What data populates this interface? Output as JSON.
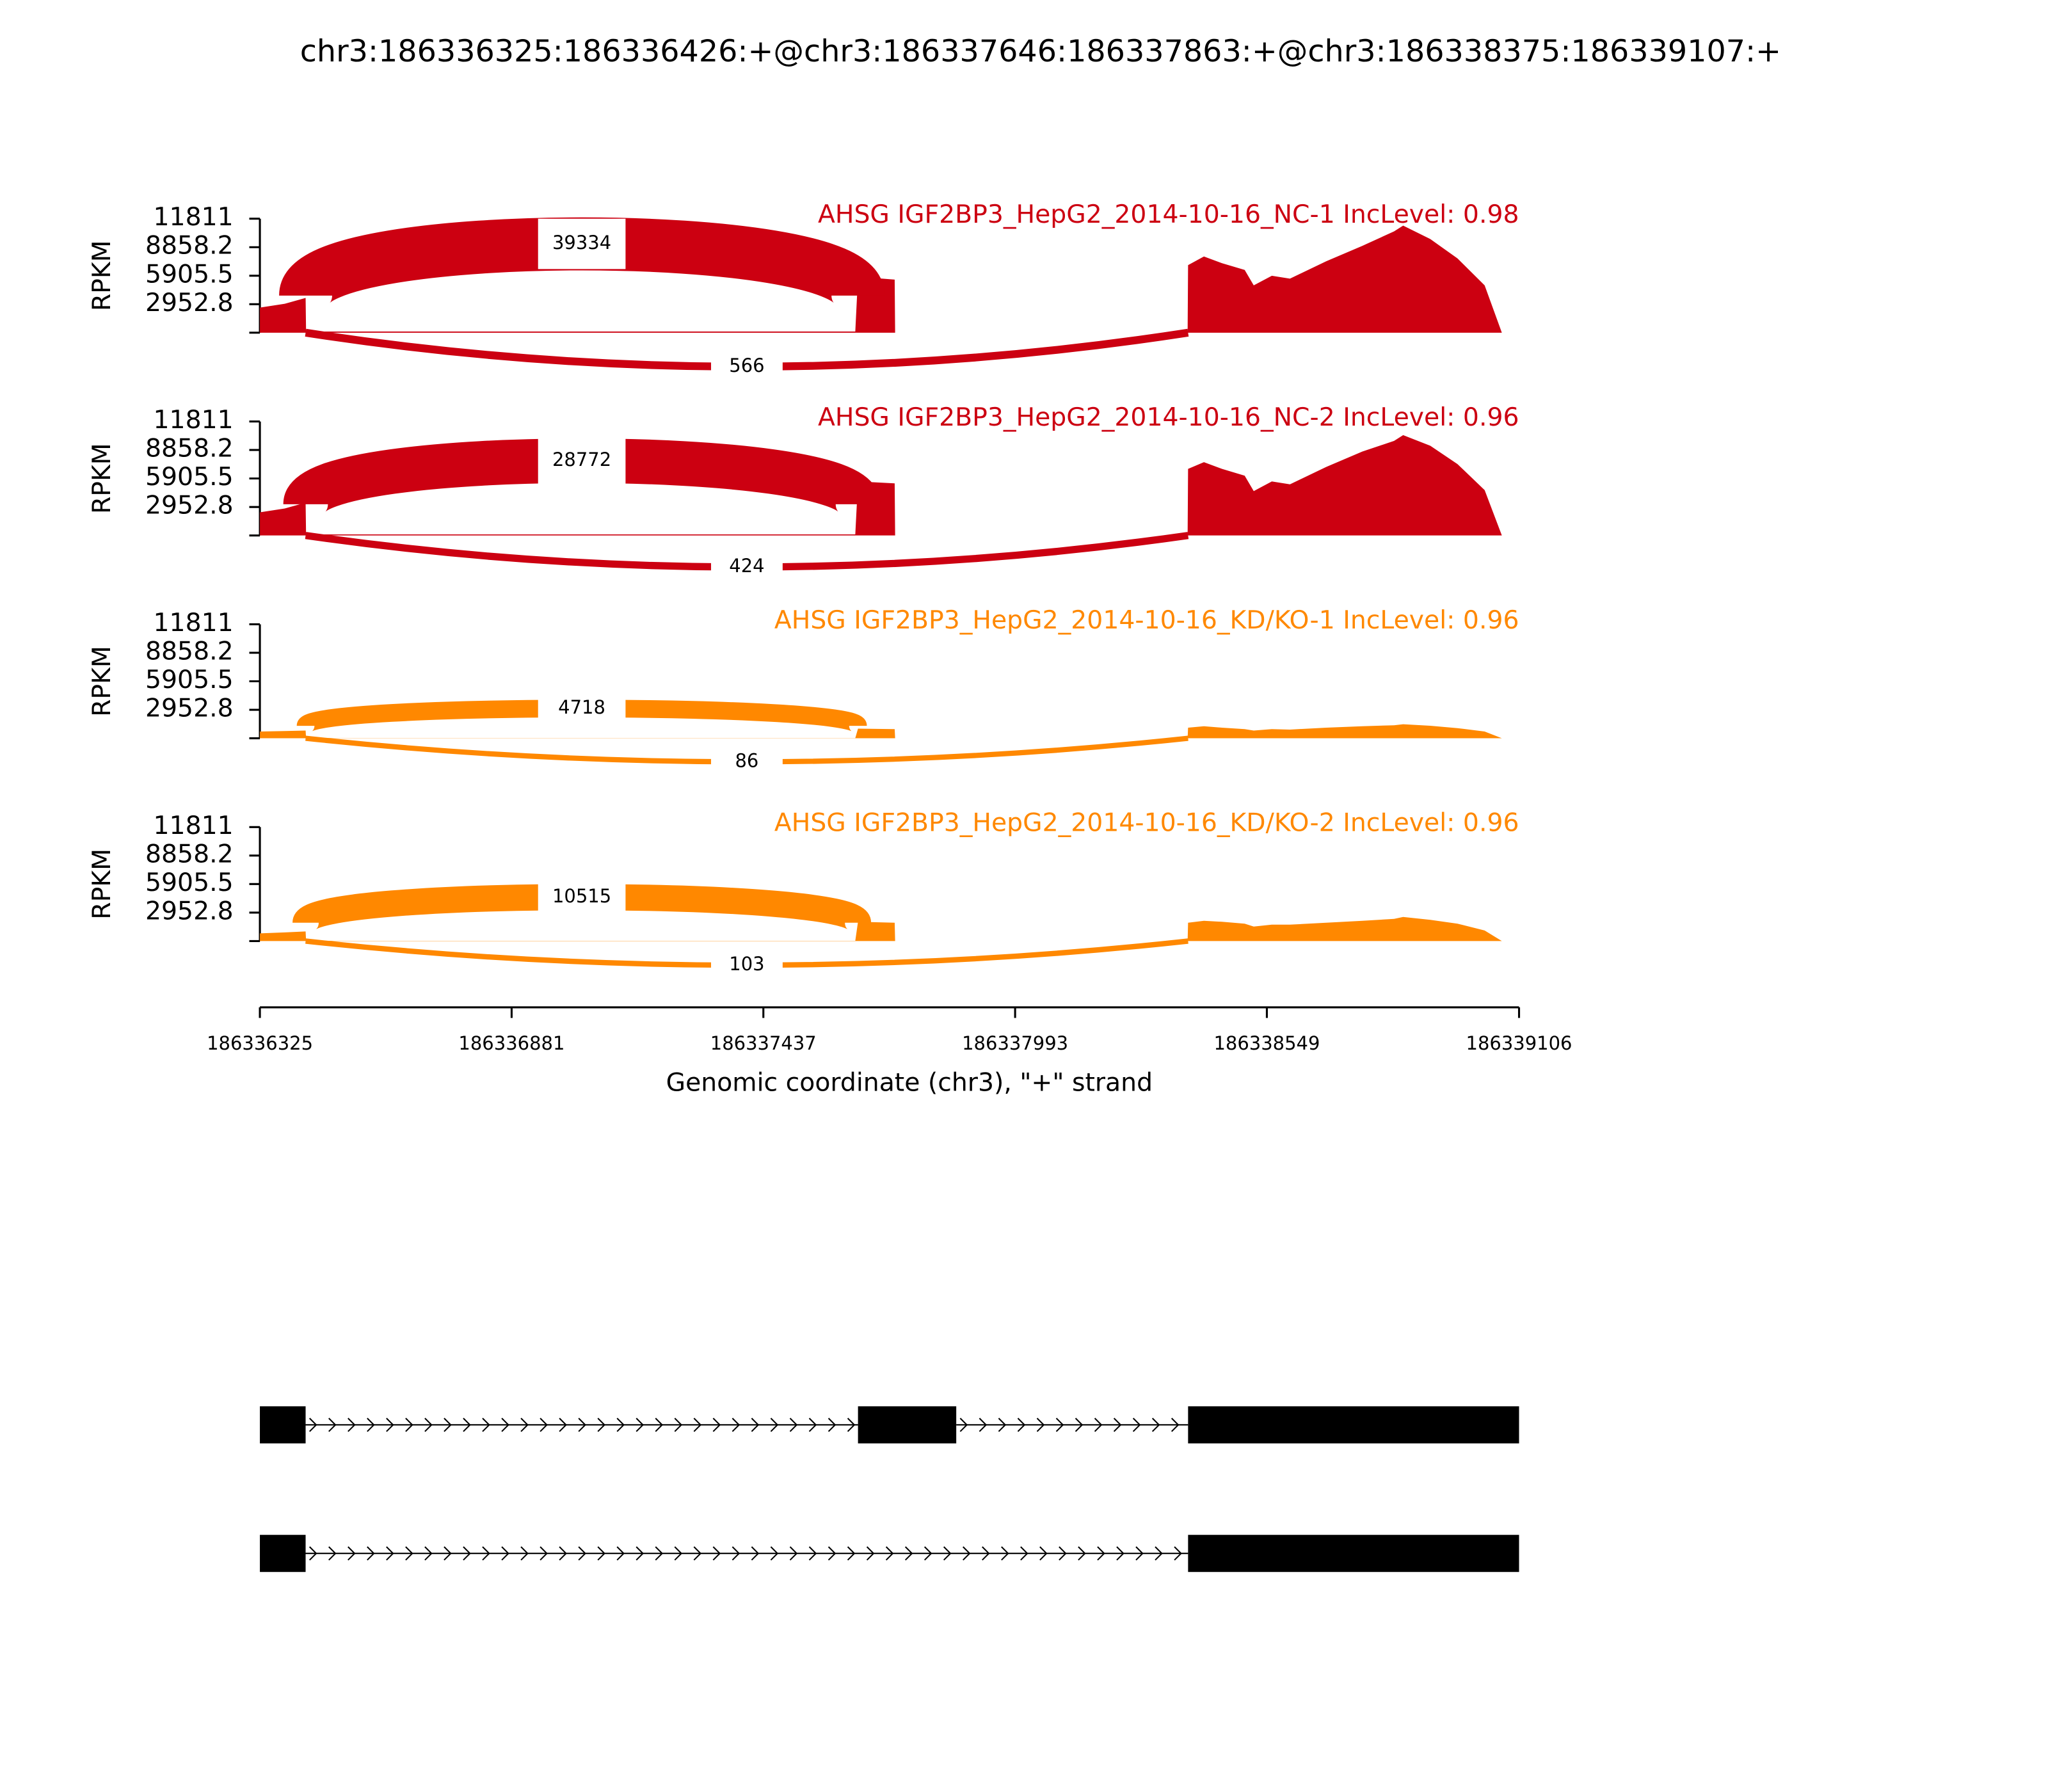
{
  "chart_data": {
    "type": "sashimi",
    "title": "chr3:186336325:186336426:+@chr3:186337646:186337863:+@chr3:186338375:186339107:+",
    "ylabel": "RPKM",
    "ylim": [
      0,
      11811
    ],
    "yticks": [
      2952.8,
      5905.5,
      8858.2,
      11811
    ],
    "xlim": [
      186336325,
      186339106
    ],
    "xticks": [
      186336325,
      186336881,
      186337437,
      186337993,
      186338549,
      186339106
    ],
    "xlabel": "Genomic coordinate (chr3), \"+\" strand",
    "panels": [
      {
        "name": "AHSG IGF2BP3_HepG2_2014-10-16_NC-1 IncLevel: 0.98",
        "color": "#cc0011",
        "coverage": {
          "x": [
            186336325,
            186336380,
            186336426,
            186336427,
            186337640,
            186337646,
            186337727,
            186337728,
            186338374,
            186338375,
            186338410,
            186338450,
            186338500,
            186338520,
            186338560,
            186338600,
            186338680,
            186338760,
            186338830,
            186338850,
            186338910,
            186338970,
            186339030,
            186339068
          ],
          "values": [
            2600,
            3000,
            3600,
            120,
            120,
            5800,
            5500,
            0,
            0,
            7000,
            7900,
            7200,
            6500,
            4900,
            5900,
            5600,
            7400,
            9000,
            10500,
            11100,
            9700,
            7700,
            4900,
            0
          ]
        },
        "junctions": [
          {
            "start": 186336426,
            "end": 186337646,
            "count": 39334
          },
          {
            "start": 186336426,
            "end": 186338375,
            "count": 566
          }
        ]
      },
      {
        "name": "AHSG IGF2BP3_HepG2_2014-10-16_NC-2 IncLevel: 0.96",
        "color": "#cc0011",
        "coverage": {
          "x": [
            186336325,
            186336380,
            186336426,
            186336427,
            186337640,
            186337646,
            186337727,
            186337728,
            186338374,
            186338375,
            186338410,
            186338450,
            186338500,
            186338520,
            186338560,
            186338600,
            186338680,
            186338760,
            186338830,
            186338850,
            186338910,
            186338970,
            186339030,
            186339068
          ],
          "values": [
            2400,
            2800,
            3400,
            110,
            110,
            5600,
            5400,
            0,
            0,
            6900,
            7600,
            6900,
            6200,
            4600,
            5600,
            5300,
            7100,
            8700,
            9800,
            10400,
            9300,
            7400,
            4700,
            0
          ]
        },
        "junctions": [
          {
            "start": 186336426,
            "end": 186337646,
            "count": 28772
          },
          {
            "start": 186336426,
            "end": 186338375,
            "count": 424
          }
        ]
      },
      {
        "name": "AHSG IGF2BP3_HepG2_2014-10-16_KD/KO-1 IncLevel: 0.96",
        "color": "#ff8800",
        "coverage": {
          "x": [
            186336325,
            186336380,
            186336426,
            186336427,
            186337640,
            186337646,
            186337727,
            186337728,
            186338374,
            186338375,
            186338410,
            186338450,
            186338500,
            186338520,
            186338560,
            186338600,
            186338680,
            186338760,
            186338830,
            186338850,
            186338910,
            186338970,
            186339030,
            186339068
          ],
          "values": [
            700,
            750,
            800,
            20,
            20,
            1000,
            950,
            0,
            0,
            1100,
            1250,
            1100,
            950,
            800,
            950,
            900,
            1100,
            1250,
            1350,
            1450,
            1300,
            1050,
            700,
            0
          ]
        },
        "junctions": [
          {
            "start": 186336426,
            "end": 186337646,
            "count": 4718
          },
          {
            "start": 186336426,
            "end": 186338375,
            "count": 86
          }
        ]
      },
      {
        "name": "AHSG IGF2BP3_HepG2_2014-10-16_KD/KO-2 IncLevel: 0.96",
        "color": "#ff8800",
        "coverage": {
          "x": [
            186336325,
            186336380,
            186336426,
            186336427,
            186337640,
            186337646,
            186337727,
            186337728,
            186338374,
            186338375,
            186338410,
            186338450,
            186338500,
            186338520,
            186338560,
            186338600,
            186338680,
            186338760,
            186338830,
            186338850,
            186338910,
            186338970,
            186339030,
            186339068
          ],
          "values": [
            800,
            900,
            1000,
            30,
            30,
            2000,
            1900,
            0,
            0,
            1900,
            2100,
            2000,
            1800,
            1500,
            1700,
            1700,
            1900,
            2100,
            2300,
            2500,
            2200,
            1800,
            1100,
            0
          ]
        },
        "junctions": [
          {
            "start": 186336426,
            "end": 186337646,
            "count": 10515
          },
          {
            "start": 186336426,
            "end": 186338375,
            "count": 103
          }
        ]
      }
    ],
    "transcripts": [
      {
        "exons": [
          [
            186336325,
            186336426
          ],
          [
            186337646,
            186337863
          ],
          [
            186338375,
            186339106
          ]
        ]
      },
      {
        "exons": [
          [
            186336325,
            186336426
          ],
          [
            186338375,
            186339106
          ]
        ]
      }
    ]
  }
}
